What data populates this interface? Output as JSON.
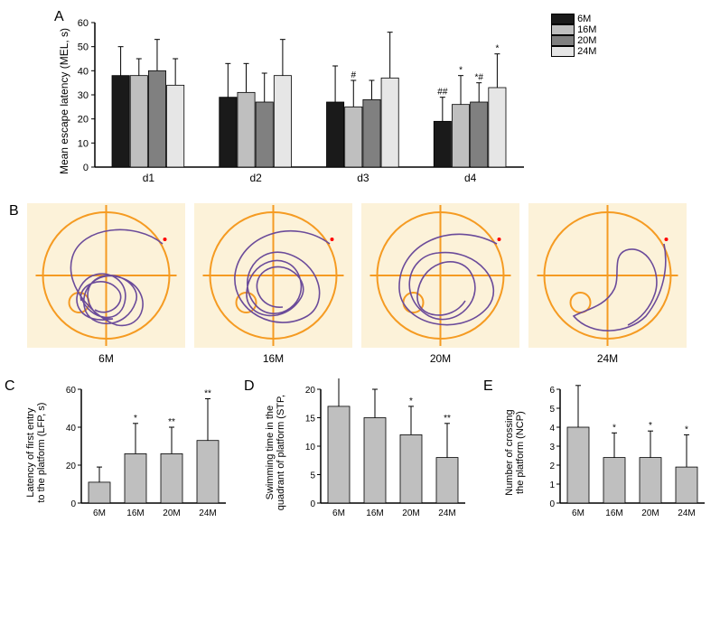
{
  "panelA": {
    "label": "A",
    "ylabel": "Mean escape latency (MEL, s)",
    "ylim": [
      0,
      60
    ],
    "yticks": [
      0,
      10,
      20,
      30,
      40,
      50,
      60
    ],
    "groups": [
      "d1",
      "d2",
      "d3",
      "d4"
    ],
    "legend": [
      "6M",
      "16M",
      "20M",
      "24M"
    ],
    "colors": [
      "#1a1a1a",
      "#bfbfbf",
      "#808080",
      "#e6e6e6"
    ],
    "data": [
      {
        "values": [
          38,
          38,
          40,
          34
        ],
        "errors": [
          12,
          7,
          13,
          11
        ],
        "sig": [
          "",
          "",
          "",
          ""
        ]
      },
      {
        "values": [
          29,
          31,
          27,
          38
        ],
        "errors": [
          14,
          12,
          12,
          15
        ],
        "sig": [
          "",
          "",
          "",
          ""
        ]
      },
      {
        "values": [
          27,
          25,
          28,
          37
        ],
        "errors": [
          15,
          11,
          8,
          19
        ],
        "sig": [
          "",
          "#",
          "",
          ""
        ]
      },
      {
        "values": [
          19,
          26,
          27,
          33
        ],
        "errors": [
          10,
          12,
          8,
          14
        ],
        "sig": [
          "##",
          "*",
          "*#",
          "*"
        ]
      }
    ],
    "bar_width": 0.7,
    "label_fontsize": 12
  },
  "panelB": {
    "label": "B",
    "background": "#fcf2d9",
    "circle_color": "#f59b22",
    "path_color": "#6b4b9a",
    "labels": [
      "6M",
      "16M",
      "20M",
      "24M"
    ]
  },
  "panelC": {
    "label": "C",
    "ylabel_line1": "Latency of first entry",
    "ylabel_line2": "to the platform (LFP, s)",
    "ylim": [
      0,
      60
    ],
    "yticks": [
      0,
      20,
      40,
      60
    ],
    "categories": [
      "6M",
      "16M",
      "20M",
      "24M"
    ],
    "values": [
      11,
      26,
      26,
      33
    ],
    "errors": [
      8,
      16,
      14,
      22
    ],
    "sig": [
      "",
      "*",
      "**",
      "**"
    ],
    "bar_color": "#bfbfbf"
  },
  "panelD": {
    "label": "D",
    "ylabel_line1": "Swimming time in the",
    "ylabel_line2": "quadrant of platform (STP,",
    "ylim": [
      0,
      20
    ],
    "yticks": [
      0,
      5,
      10,
      15,
      20
    ],
    "categories": [
      "6M",
      "16M",
      "20M",
      "24M"
    ],
    "values": [
      17,
      15,
      12,
      8
    ],
    "errors": [
      5,
      5,
      5,
      6
    ],
    "sig": [
      "",
      "",
      "*",
      "**"
    ],
    "bar_color": "#bfbfbf"
  },
  "panelE": {
    "label": "E",
    "ylabel_line1": "Number of crossing",
    "ylabel_line2": "the platform (NCP)",
    "ylim": [
      0,
      6
    ],
    "yticks": [
      0,
      1,
      2,
      3,
      4,
      5,
      6
    ],
    "categories": [
      "6M",
      "16M",
      "20M",
      "24M"
    ],
    "values": [
      4.0,
      2.4,
      2.4,
      1.9
    ],
    "errors": [
      2.2,
      1.3,
      1.4,
      1.7
    ],
    "sig": [
      "",
      "*",
      "*",
      "*"
    ],
    "bar_color": "#bfbfbf"
  }
}
